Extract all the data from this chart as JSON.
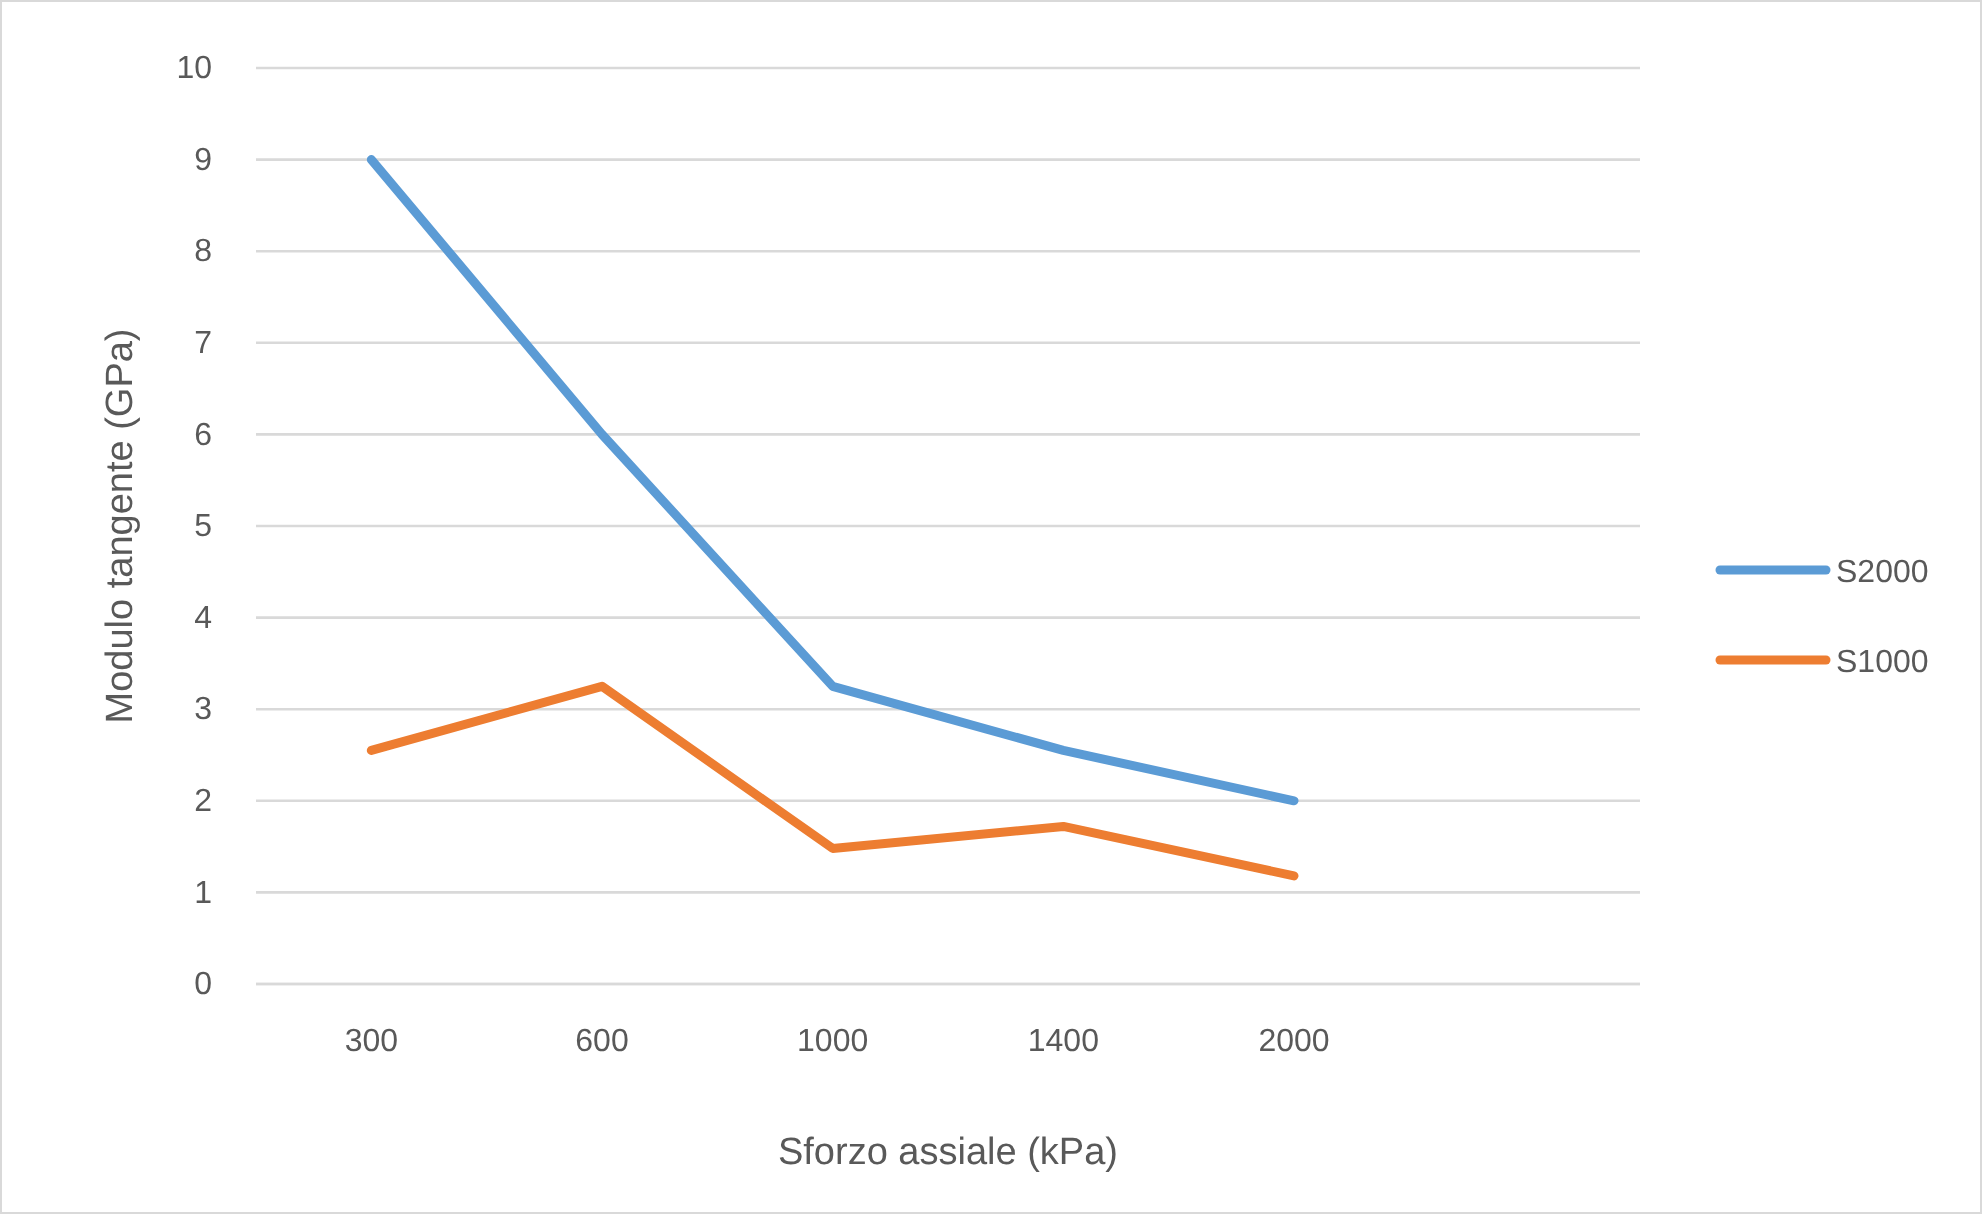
{
  "chart_data": {
    "type": "line",
    "xlabel": "Sforzo assiale (kPa)",
    "ylabel": "Modulo tangente (GPa)",
    "categories": [
      "300",
      "600",
      "1000",
      "1400",
      "2000",
      null
    ],
    "series": [
      {
        "name": "S2000",
        "color": "#5b9bd5",
        "values": [
          9,
          6,
          3.25,
          2.55,
          2,
          null
        ]
      },
      {
        "name": "S1000",
        "color": "#ed7d31",
        "values": [
          2.55,
          3.25,
          1.48,
          1.72,
          1.18,
          null
        ]
      }
    ],
    "ylim": [
      0,
      10
    ],
    "yticks": [
      0,
      1,
      2,
      3,
      4,
      5,
      6,
      7,
      8,
      9,
      10
    ],
    "grid": "y",
    "legend": "right",
    "marker": "none",
    "line_style": "solid"
  }
}
